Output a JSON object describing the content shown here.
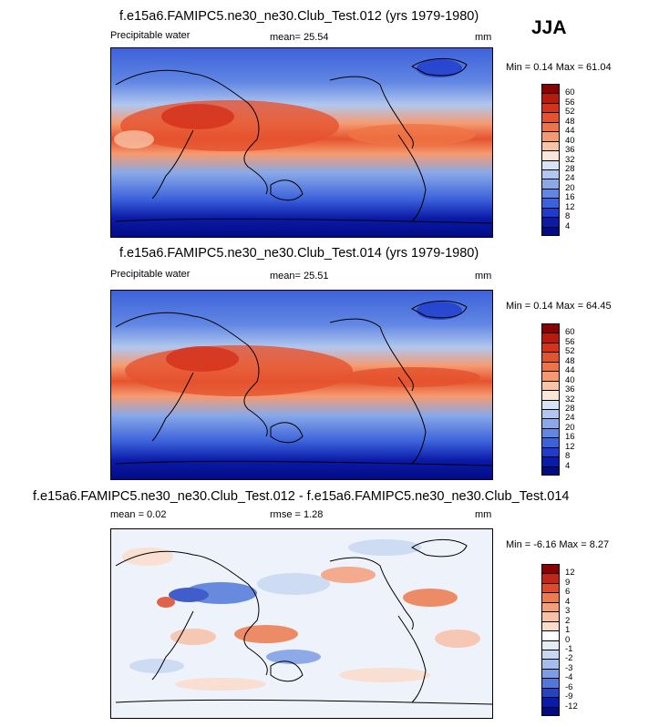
{
  "season": "JJA",
  "panels": [
    {
      "title": "f.e15a6.FAMIPC5.ne30_ne30.Club_Test.012 (yrs 1979-1980)",
      "left_label": "Precipitable water",
      "center_label": "mean=  25.54",
      "right_label": "mm",
      "minmax": "Min =  0.14 Max =  61.04",
      "levels": [
        "60",
        "56",
        "52",
        "48",
        "44",
        "40",
        "36",
        "32",
        "28",
        "24",
        "20",
        "16",
        "12",
        "8",
        "4"
      ],
      "colors": [
        "#8b0000",
        "#b81b0e",
        "#d5321c",
        "#e5532e",
        "#ef7445",
        "#f59a70",
        "#f9c3a6",
        "#fbe7da",
        "#d8e4f6",
        "#b1c7ef",
        "#89a9e8",
        "#6287e3",
        "#3c62db",
        "#1f3ccc",
        "#0a1ba8",
        "#020b85"
      ]
    },
    {
      "title": "f.e15a6.FAMIPC5.ne30_ne30.Club_Test.014 (yrs 1979-1980)",
      "left_label": "Precipitable water",
      "center_label": "mean=  25.51",
      "right_label": "mm",
      "minmax": "Min =  0.14 Max =  64.45",
      "levels": [
        "60",
        "56",
        "52",
        "48",
        "44",
        "40",
        "36",
        "32",
        "28",
        "24",
        "20",
        "16",
        "12",
        "8",
        "4"
      ],
      "colors": [
        "#8b0000",
        "#b81b0e",
        "#d5321c",
        "#e5532e",
        "#ef7445",
        "#f59a70",
        "#f9c3a6",
        "#fbe7da",
        "#d8e4f6",
        "#b1c7ef",
        "#89a9e8",
        "#6287e3",
        "#3c62db",
        "#1f3ccc",
        "#0a1ba8",
        "#020b85"
      ]
    },
    {
      "title": "f.e15a6.FAMIPC5.ne30_ne30.Club_Test.012 - f.e15a6.FAMIPC5.ne30_ne30.Club_Test.014",
      "left_label": "mean =  0.02",
      "center_label": "rmse =  1.28",
      "right_label": "mm",
      "minmax": "Min = -6.16 Max =  8.27",
      "levels": [
        "12",
        "9",
        "6",
        "4",
        "3",
        "2",
        "1",
        "0",
        "-1",
        "-2",
        "-3",
        "-4",
        "-6",
        "-9",
        "-12"
      ],
      "colors": [
        "#8b0000",
        "#c0271a",
        "#de4a2c",
        "#ef7a4e",
        "#f59e7a",
        "#f8c0a6",
        "#fbdccb",
        "#ffffff",
        "#e4ecf8",
        "#c8d8f2",
        "#a4bdec",
        "#7d9de4",
        "#5077da",
        "#2444c4",
        "#0a1ba8",
        "#020b85"
      ]
    }
  ]
}
